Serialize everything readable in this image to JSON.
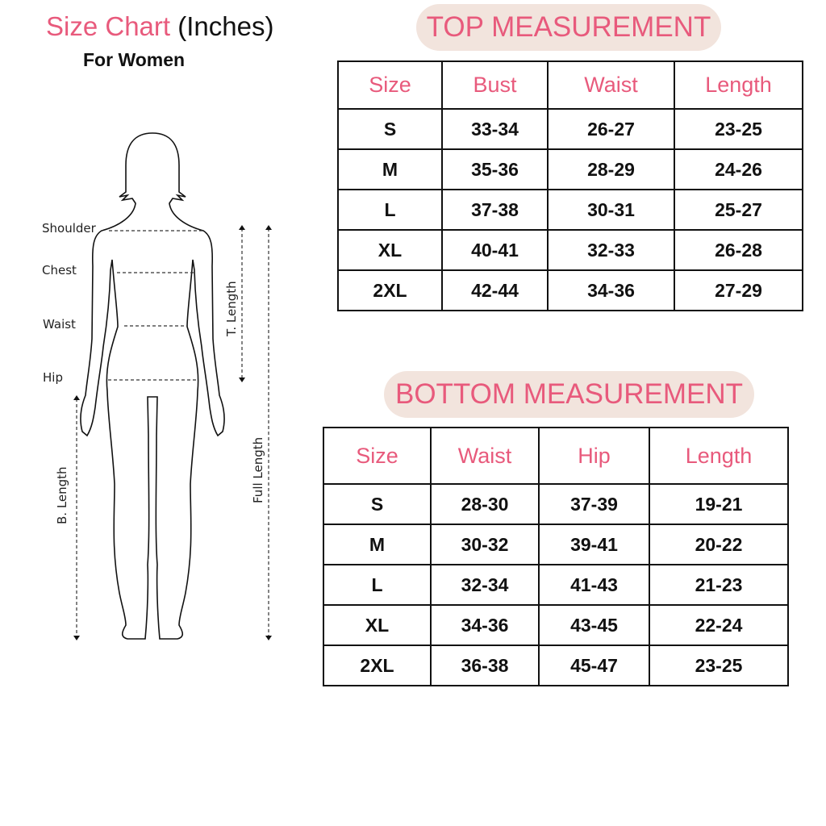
{
  "header": {
    "title_main": "Size Chart",
    "title_unit": "(Inches)",
    "subtitle": "For Women"
  },
  "colors": {
    "accent": "#e85a7c",
    "pill_bg": "#f2e4dd"
  },
  "figure": {
    "labels": [
      "Shoulder",
      "Chest",
      "Waist",
      "Hip"
    ],
    "t_length": "T. Length",
    "b_length": "B. Length",
    "full_length": "Full Length"
  },
  "top": {
    "title": "TOP MEASUREMENT",
    "columns": [
      "Size",
      "Bust",
      "Waist",
      "Length"
    ],
    "rows": [
      [
        "S",
        "33-34",
        "26-27",
        "23-25"
      ],
      [
        "M",
        "35-36",
        "28-29",
        "24-26"
      ],
      [
        "L",
        "37-38",
        "30-31",
        "25-27"
      ],
      [
        "XL",
        "40-41",
        "32-33",
        "26-28"
      ],
      [
        "2XL",
        "42-44",
        "34-36",
        "27-29"
      ]
    ]
  },
  "bottom": {
    "title": "BOTTOM MEASUREMENT",
    "columns": [
      "Size",
      "Waist",
      "Hip",
      "Length"
    ],
    "rows": [
      [
        "S",
        "28-30",
        "37-39",
        "19-21"
      ],
      [
        "M",
        "30-32",
        "39-41",
        "20-22"
      ],
      [
        "L",
        "32-34",
        "41-43",
        "21-23"
      ],
      [
        "XL",
        "34-36",
        "43-45",
        "22-24"
      ],
      [
        "2XL",
        "36-38",
        "45-47",
        "23-25"
      ]
    ]
  }
}
